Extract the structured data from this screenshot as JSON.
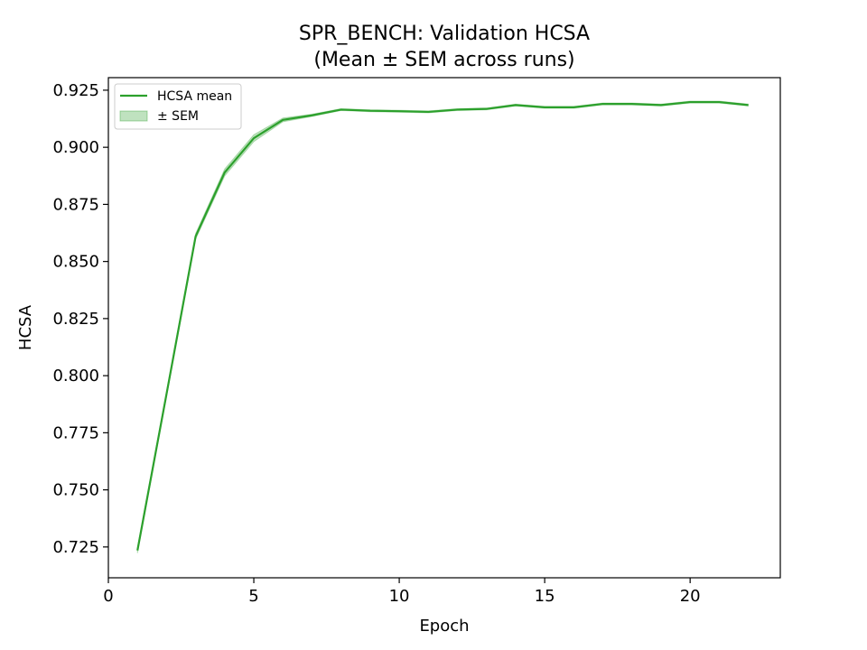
{
  "chart_data": {
    "type": "line",
    "title": "SPR_BENCH: Validation HCSA",
    "subtitle": "(Mean ± SEM across runs)",
    "xlabel": "Epoch",
    "ylabel": "HCSA",
    "xlim": [
      0,
      23.1
    ],
    "ylim": [
      0.7115,
      0.9305
    ],
    "xticks": [
      0,
      5,
      10,
      15,
      20
    ],
    "yticks": [
      0.725,
      0.75,
      0.775,
      0.8,
      0.825,
      0.85,
      0.875,
      0.9,
      0.925
    ],
    "xtick_labels": [
      "0",
      "5",
      "10",
      "15",
      "20"
    ],
    "ytick_labels": [
      "0.725",
      "0.750",
      "0.775",
      "0.800",
      "0.825",
      "0.850",
      "0.875",
      "0.900",
      "0.925"
    ],
    "grid": false,
    "legend_position": "top-left",
    "series": [
      {
        "name": "HCSA mean",
        "color": "#2ca02c",
        "x": [
          1,
          2,
          3,
          4,
          5,
          6,
          7,
          8,
          9,
          10,
          11,
          12,
          13,
          14,
          15,
          16,
          17,
          18,
          19,
          20,
          21,
          22
        ],
        "values": [
          0.7235,
          0.792,
          0.861,
          0.889,
          0.904,
          0.912,
          0.914,
          0.9165,
          0.916,
          0.9158,
          0.9155,
          0.9165,
          0.9168,
          0.9185,
          0.9175,
          0.9175,
          0.919,
          0.919,
          0.9185,
          0.9198,
          0.9198,
          0.9185
        ],
        "sem": [
          0.0012,
          0.001,
          0.0012,
          0.0015,
          0.0015,
          0.0008,
          0.0005,
          0.0004,
          0.0004,
          0.0004,
          0.0004,
          0.0004,
          0.0004,
          0.0004,
          0.0004,
          0.0004,
          0.0004,
          0.0004,
          0.0004,
          0.0004,
          0.0004,
          0.0004
        ]
      }
    ],
    "band_label": "± SEM",
    "band_color": "#2ca02c"
  }
}
